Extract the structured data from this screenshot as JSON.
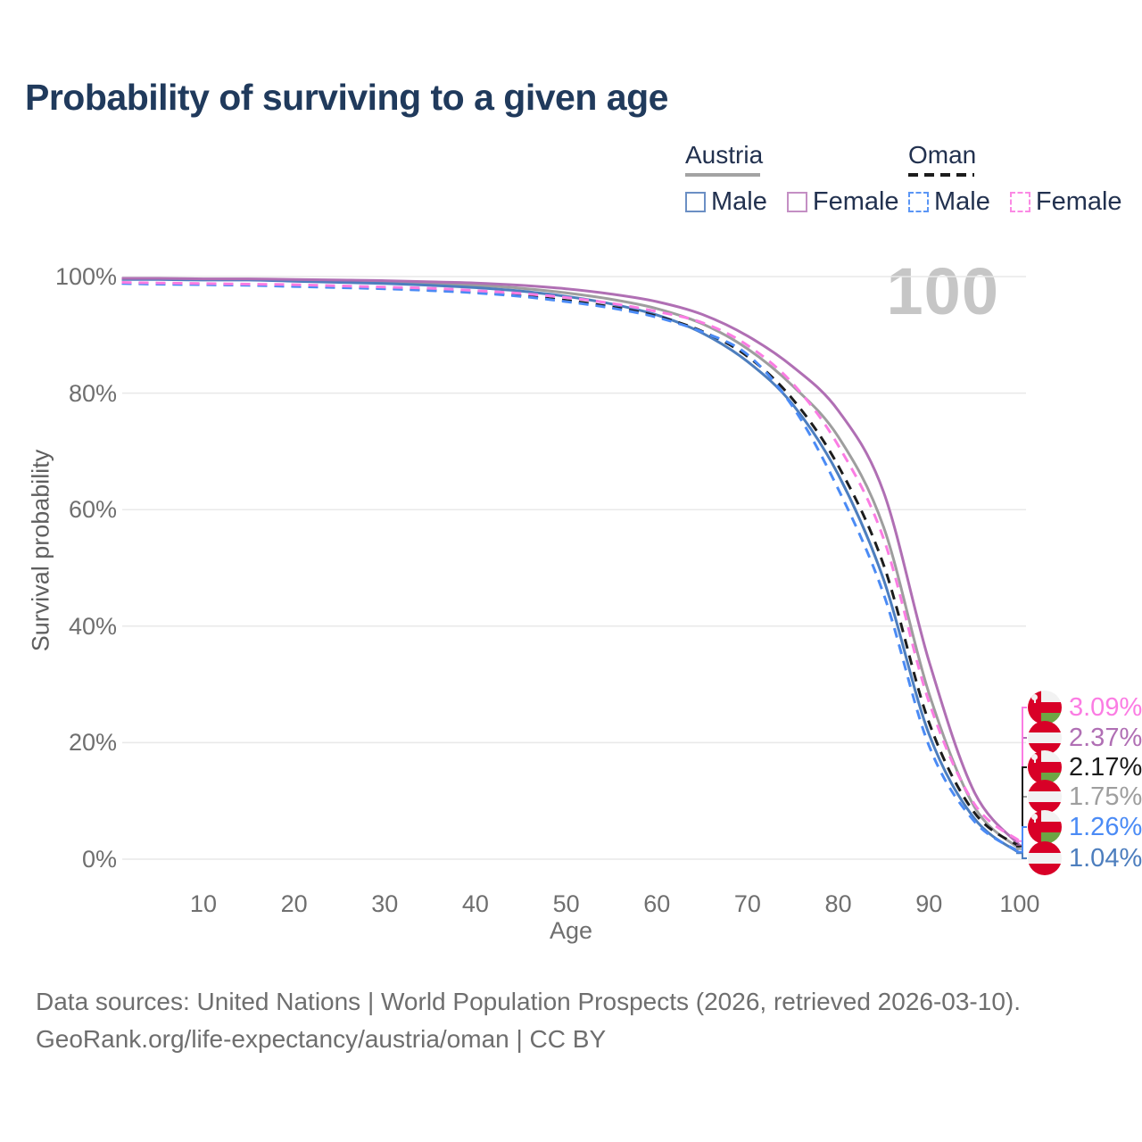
{
  "title": "Probability of surviving to a given age",
  "watermark_age": "100",
  "legend": {
    "groups": [
      {
        "country": "Austria",
        "line_style": "solid",
        "underline_color": "#a3a3a3",
        "items": [
          {
            "label": "Male",
            "color": "#6b8fc4",
            "dashed": false
          },
          {
            "label": "Female",
            "color": "#c48fc4",
            "dashed": false
          }
        ]
      },
      {
        "country": "Oman",
        "line_style": "dashed",
        "underline_color": "#1c1c1c",
        "items": [
          {
            "label": "Male",
            "color": "#5b96f5",
            "dashed": true
          },
          {
            "label": "Female",
            "color": "#fb8ae4",
            "dashed": true
          }
        ]
      }
    ]
  },
  "y_axis": {
    "title": "Survival probability",
    "ticks": [
      "100%",
      "80%",
      "60%",
      "40%",
      "20%",
      "0%"
    ]
  },
  "x_axis": {
    "title": "Age",
    "ticks": [
      "10",
      "20",
      "30",
      "40",
      "50",
      "60",
      "70",
      "80",
      "90",
      "100"
    ]
  },
  "end_labels": [
    {
      "value": "3.09%",
      "color": "#fb7ce3",
      "flag": "oman"
    },
    {
      "value": "2.37%",
      "color": "#b06fb4",
      "flag": "austria"
    },
    {
      "value": "2.17%",
      "color": "#1c1c1c",
      "flag": "oman"
    },
    {
      "value": "1.75%",
      "color": "#9e9e9e",
      "flag": "austria"
    },
    {
      "value": "1.26%",
      "color": "#4b8bf5",
      "flag": "oman"
    },
    {
      "value": "1.04%",
      "color": "#4d7ebe",
      "flag": "austria"
    }
  ],
  "footer": {
    "line1": "Data sources: United Nations | World Population Prospects (2026, retrieved 2026-03-10).",
    "line2": "GeoRank.org/life-expectancy/austria/oman | CC BY"
  },
  "chart_data": {
    "type": "line",
    "title": "Probability of surviving to a given age",
    "xlabel": "Age",
    "ylabel": "Survival probability",
    "xlim": [
      1,
      100
    ],
    "ylim": [
      0,
      100
    ],
    "grid": "horizontal",
    "legend_position": "top-right",
    "x": [
      1,
      5,
      10,
      15,
      20,
      25,
      30,
      35,
      40,
      45,
      50,
      55,
      60,
      65,
      70,
      75,
      80,
      85,
      90,
      95,
      100
    ],
    "series": [
      {
        "name": "Austria Total",
        "color": "#9e9e9e",
        "dash": false,
        "values": [
          99.6,
          99.6,
          99.5,
          99.5,
          99.4,
          99.2,
          99.0,
          98.8,
          98.5,
          98.0,
          97.2,
          96.1,
          94.5,
          91.9,
          87.6,
          81.2,
          72.5,
          57.0,
          28.5,
          9.0,
          1.75
        ],
        "end_label": "1.75%"
      },
      {
        "name": "Austria Male",
        "color": "#4d7ebe",
        "dash": false,
        "values": [
          99.5,
          99.5,
          99.4,
          99.4,
          99.2,
          99.0,
          98.8,
          98.5,
          98.1,
          97.5,
          96.6,
          95.3,
          93.4,
          90.3,
          85.4,
          78.0,
          66.0,
          48.0,
          21.5,
          7.0,
          1.04
        ],
        "end_label": "1.04%"
      },
      {
        "name": "Austria Female",
        "color": "#b06fb4",
        "dash": false,
        "values": [
          99.7,
          99.7,
          99.6,
          99.6,
          99.5,
          99.4,
          99.3,
          99.1,
          98.9,
          98.5,
          97.9,
          97.0,
          95.7,
          93.5,
          89.8,
          84.5,
          77.0,
          63.0,
          34.0,
          11.5,
          2.37
        ],
        "end_label": "2.37%"
      },
      {
        "name": "Oman Total",
        "color": "#1c1c1c",
        "dash": true,
        "values": [
          98.9,
          98.8,
          98.7,
          98.6,
          98.4,
          98.2,
          98.0,
          97.7,
          97.3,
          96.7,
          95.9,
          94.8,
          93.2,
          90.6,
          86.3,
          78.9,
          67.5,
          50.5,
          23.5,
          8.0,
          2.17
        ],
        "end_label": "2.17%"
      },
      {
        "name": "Oman Male",
        "color": "#4b8bf5",
        "dash": true,
        "values": [
          98.8,
          98.7,
          98.6,
          98.5,
          98.3,
          98.1,
          97.9,
          97.6,
          97.2,
          96.6,
          95.7,
          94.6,
          93.0,
          90.5,
          86.6,
          77.6,
          63.5,
          45.5,
          19.5,
          6.5,
          1.26
        ],
        "end_label": "1.26%"
      },
      {
        "name": "Oman Female",
        "color": "#fb7ce3",
        "dash": true,
        "values": [
          99.0,
          98.9,
          98.8,
          98.7,
          98.6,
          98.4,
          98.2,
          98.0,
          97.6,
          97.1,
          96.4,
          95.4,
          94.0,
          92.1,
          88.2,
          81.6,
          71.0,
          55.0,
          27.0,
          9.5,
          3.09
        ],
        "end_label": "3.09%"
      }
    ]
  }
}
